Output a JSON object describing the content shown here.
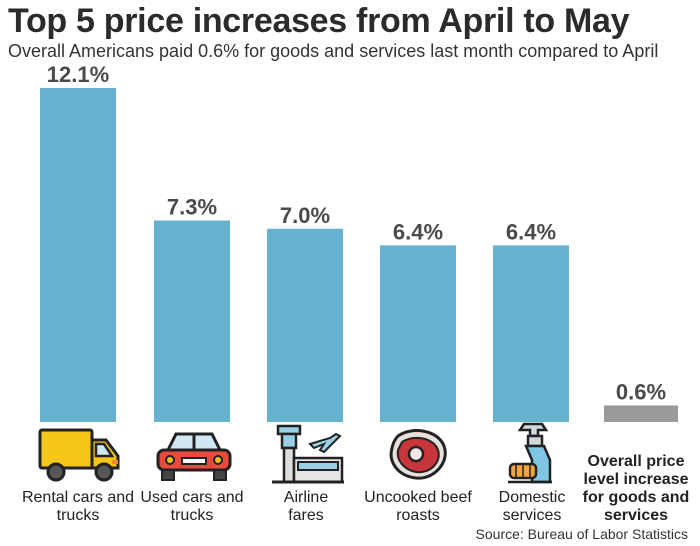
{
  "title": "Top 5 price increases from April to May",
  "subtitle": "Overall Americans paid 0.6% for goods and services last month compared to April",
  "source": "Source: Bureau of Labor Statistics",
  "colors": {
    "bar": "#66b3d1",
    "overall_bar": "#9a9a9a",
    "value_text": "#4a4a4a"
  },
  "chart_data": {
    "type": "bar",
    "categories": [
      "Rental cars and trucks",
      "Used cars and trucks",
      "Airline fares",
      "Uncooked beef roasts",
      "Domestic services",
      "Overall price level increase for goods and services"
    ],
    "values": [
      12.1,
      7.3,
      7.0,
      6.4,
      6.4,
      0.6
    ],
    "value_labels": [
      "12.1%",
      "7.3%",
      "7.0%",
      "6.4%",
      "6.4%",
      "0.6%"
    ],
    "ylim": [
      0,
      12.1
    ],
    "grid": false,
    "icons": [
      "truck-icon",
      "car-icon",
      "airport-icon",
      "steak-icon",
      "cleaning-spray-icon",
      ""
    ]
  }
}
